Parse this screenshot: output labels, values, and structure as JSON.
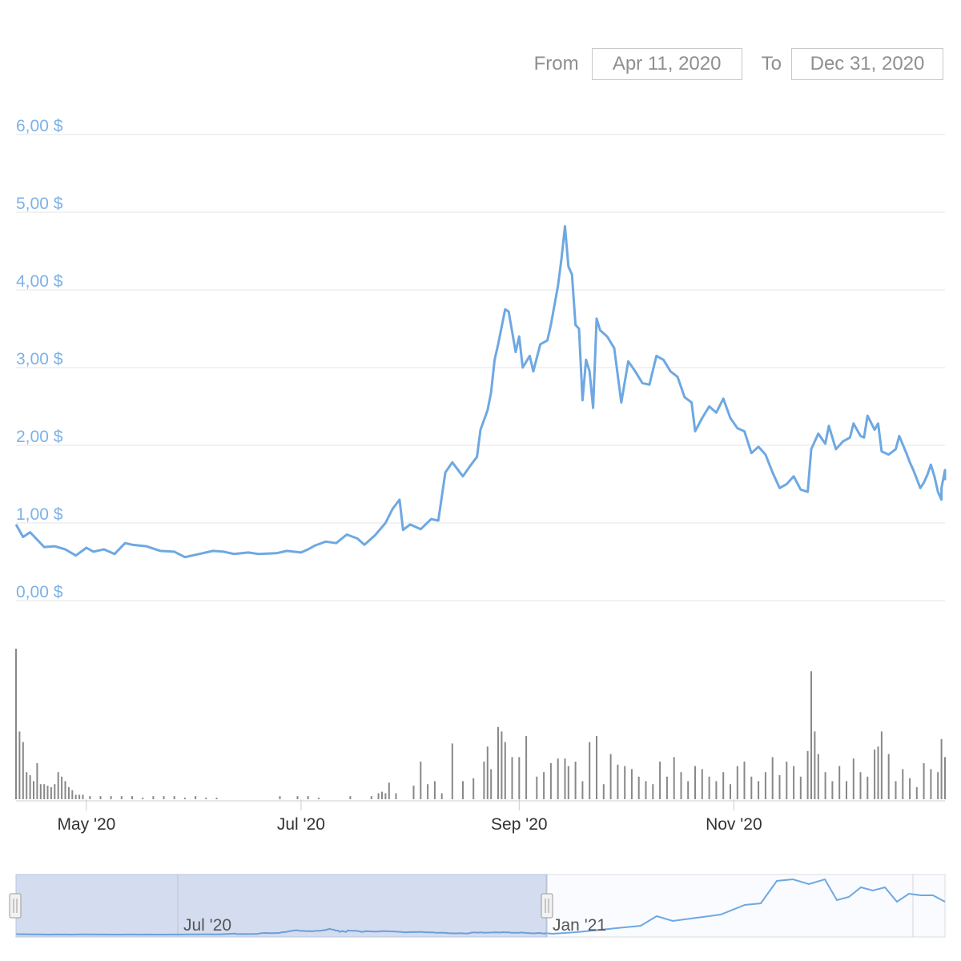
{
  "range_selector": {
    "from_label": "From",
    "from_value": "Apr 11, 2020",
    "to_label": "To",
    "to_value": "Dec 31, 2020"
  },
  "navigator": {
    "labels": [
      "Jul '20",
      "Jan '21"
    ]
  },
  "colors": {
    "line": "#6ea8e2",
    "axis_label": "#7db2e6",
    "volume": "#888888",
    "grid": "#e6e6e6"
  },
  "chart_data": {
    "type": "line",
    "title": "",
    "xlabel": "",
    "ylabel": "",
    "x_range": [
      "2020-04-11",
      "2020-12-31"
    ],
    "ylim": [
      0,
      6
    ],
    "y_tick_labels": [
      "0,00 $",
      "1,00 $",
      "2,00 $",
      "3,00 $",
      "4,00 $",
      "5,00 $",
      "6,00 $"
    ],
    "x_tick_labels": [
      "May '20",
      "Jul '20",
      "Sep '20",
      "Nov '20"
    ],
    "x_ticks": [
      "2020-05-01",
      "2020-07-01",
      "2020-09-01",
      "2020-11-01"
    ],
    "grid": true,
    "series": [
      {
        "values": [
          [
            "2020-04-11",
            0.98
          ],
          [
            "2020-04-13",
            0.82
          ],
          [
            "2020-04-15",
            0.88
          ],
          [
            "2020-04-19",
            0.69
          ],
          [
            "2020-04-22",
            0.7
          ],
          [
            "2020-04-25",
            0.66
          ],
          [
            "2020-04-28",
            0.58
          ],
          [
            "2020-05-01",
            0.68
          ],
          [
            "2020-05-03",
            0.63
          ],
          [
            "2020-05-06",
            0.66
          ],
          [
            "2020-05-09",
            0.6
          ],
          [
            "2020-05-12",
            0.74
          ],
          [
            "2020-05-14",
            0.72
          ],
          [
            "2020-05-18",
            0.7
          ],
          [
            "2020-05-22",
            0.64
          ],
          [
            "2020-05-26",
            0.63
          ],
          [
            "2020-05-29",
            0.56
          ],
          [
            "2020-06-02",
            0.6
          ],
          [
            "2020-06-06",
            0.64
          ],
          [
            "2020-06-09",
            0.63
          ],
          [
            "2020-06-12",
            0.6
          ],
          [
            "2020-06-16",
            0.62
          ],
          [
            "2020-06-19",
            0.6
          ],
          [
            "2020-06-24",
            0.61
          ],
          [
            "2020-06-27",
            0.64
          ],
          [
            "2020-07-01",
            0.62
          ],
          [
            "2020-07-03",
            0.66
          ],
          [
            "2020-07-05",
            0.71
          ],
          [
            "2020-07-08",
            0.76
          ],
          [
            "2020-07-11",
            0.74
          ],
          [
            "2020-07-14",
            0.85
          ],
          [
            "2020-07-17",
            0.8
          ],
          [
            "2020-07-19",
            0.72
          ],
          [
            "2020-07-22",
            0.84
          ],
          [
            "2020-07-25",
            1.0
          ],
          [
            "2020-07-27",
            1.18
          ],
          [
            "2020-07-29",
            1.3
          ],
          [
            "2020-07-30",
            0.91
          ],
          [
            "2020-08-01",
            0.98
          ],
          [
            "2020-08-04",
            0.92
          ],
          [
            "2020-08-07",
            1.05
          ],
          [
            "2020-08-09",
            1.03
          ],
          [
            "2020-08-11",
            1.65
          ],
          [
            "2020-08-13",
            1.78
          ],
          [
            "2020-08-16",
            1.6
          ],
          [
            "2020-08-18",
            1.73
          ],
          [
            "2020-08-20",
            1.85
          ],
          [
            "2020-08-21",
            2.2
          ],
          [
            "2020-08-23",
            2.45
          ],
          [
            "2020-08-24",
            2.68
          ],
          [
            "2020-08-25",
            3.1
          ],
          [
            "2020-08-26",
            3.3
          ],
          [
            "2020-08-28",
            3.75
          ],
          [
            "2020-08-29",
            3.72
          ],
          [
            "2020-08-31",
            3.2
          ],
          [
            "2020-09-01",
            3.4
          ],
          [
            "2020-09-02",
            3.0
          ],
          [
            "2020-09-04",
            3.15
          ],
          [
            "2020-09-05",
            2.95
          ],
          [
            "2020-09-07",
            3.3
          ],
          [
            "2020-09-09",
            3.35
          ],
          [
            "2020-09-10",
            3.55
          ],
          [
            "2020-09-12",
            4.05
          ],
          [
            "2020-09-13",
            4.4
          ],
          [
            "2020-09-14",
            4.82
          ],
          [
            "2020-09-15",
            4.3
          ],
          [
            "2020-09-16",
            4.2
          ],
          [
            "2020-09-17",
            3.55
          ],
          [
            "2020-09-18",
            3.5
          ],
          [
            "2020-09-19",
            2.58
          ],
          [
            "2020-09-20",
            3.1
          ],
          [
            "2020-09-21",
            2.95
          ],
          [
            "2020-09-22",
            2.48
          ],
          [
            "2020-09-23",
            3.63
          ],
          [
            "2020-09-24",
            3.48
          ],
          [
            "2020-09-26",
            3.4
          ],
          [
            "2020-09-28",
            3.25
          ],
          [
            "2020-09-30",
            2.55
          ],
          [
            "2020-10-02",
            3.08
          ],
          [
            "2020-10-04",
            2.95
          ],
          [
            "2020-10-06",
            2.8
          ],
          [
            "2020-10-08",
            2.78
          ],
          [
            "2020-10-10",
            3.15
          ],
          [
            "2020-10-12",
            3.1
          ],
          [
            "2020-10-14",
            2.95
          ],
          [
            "2020-10-16",
            2.88
          ],
          [
            "2020-10-18",
            2.62
          ],
          [
            "2020-10-20",
            2.55
          ],
          [
            "2020-10-21",
            2.18
          ],
          [
            "2020-10-23",
            2.35
          ],
          [
            "2020-10-25",
            2.5
          ],
          [
            "2020-10-27",
            2.42
          ],
          [
            "2020-10-29",
            2.6
          ],
          [
            "2020-10-31",
            2.35
          ],
          [
            "2020-11-02",
            2.22
          ],
          [
            "2020-11-04",
            2.18
          ],
          [
            "2020-11-06",
            1.9
          ],
          [
            "2020-11-08",
            1.98
          ],
          [
            "2020-11-10",
            1.88
          ],
          [
            "2020-11-12",
            1.65
          ],
          [
            "2020-11-14",
            1.45
          ],
          [
            "2020-11-16",
            1.5
          ],
          [
            "2020-11-18",
            1.6
          ],
          [
            "2020-11-20",
            1.43
          ],
          [
            "2020-11-22",
            1.4
          ],
          [
            "2020-11-23",
            1.95
          ],
          [
            "2020-11-25",
            2.15
          ],
          [
            "2020-11-27",
            2.02
          ],
          [
            "2020-11-28",
            2.25
          ],
          [
            "2020-11-30",
            1.95
          ],
          [
            "2020-12-02",
            2.05
          ],
          [
            "2020-12-04",
            2.1
          ],
          [
            "2020-12-05",
            2.28
          ],
          [
            "2020-12-07",
            2.12
          ],
          [
            "2020-12-08",
            2.1
          ],
          [
            "2020-12-09",
            2.38
          ],
          [
            "2020-12-11",
            2.2
          ],
          [
            "2020-12-12",
            2.28
          ],
          [
            "2020-12-13",
            1.92
          ],
          [
            "2020-12-15",
            1.88
          ],
          [
            "2020-12-17",
            1.95
          ],
          [
            "2020-12-18",
            2.12
          ],
          [
            "2020-12-20",
            1.9
          ],
          [
            "2020-12-21",
            1.78
          ],
          [
            "2020-12-22",
            1.68
          ],
          [
            "2020-12-24",
            1.45
          ],
          [
            "2020-12-25",
            1.52
          ],
          [
            "2020-12-26",
            1.62
          ],
          [
            "2020-12-27",
            1.75
          ],
          [
            "2020-12-28",
            1.6
          ],
          [
            "2020-12-29",
            1.4
          ],
          [
            "2020-12-30",
            1.3
          ],
          [
            "2020-12-30",
            1.45
          ],
          [
            "2020-12-31",
            1.68
          ],
          [
            "2020-12-31",
            1.55
          ]
        ]
      }
    ],
    "volume": [
      [
        "2020-04-11",
        100
      ],
      [
        "2020-04-12",
        45
      ],
      [
        "2020-04-13",
        38
      ],
      [
        "2020-04-14",
        18
      ],
      [
        "2020-04-15",
        16
      ],
      [
        "2020-04-16",
        12
      ],
      [
        "2020-04-17",
        24
      ],
      [
        "2020-04-18",
        10
      ],
      [
        "2020-04-19",
        10
      ],
      [
        "2020-04-20",
        9
      ],
      [
        "2020-04-21",
        8
      ],
      [
        "2020-04-22",
        10
      ],
      [
        "2020-04-23",
        18
      ],
      [
        "2020-04-24",
        15
      ],
      [
        "2020-04-25",
        12
      ],
      [
        "2020-04-26",
        8
      ],
      [
        "2020-04-27",
        6
      ],
      [
        "2020-04-28",
        3
      ],
      [
        "2020-04-29",
        3
      ],
      [
        "2020-04-30",
        3
      ],
      [
        "2020-05-02",
        2
      ],
      [
        "2020-05-05",
        2
      ],
      [
        "2020-05-08",
        2
      ],
      [
        "2020-05-11",
        2
      ],
      [
        "2020-05-14",
        2
      ],
      [
        "2020-05-17",
        1
      ],
      [
        "2020-05-20",
        2
      ],
      [
        "2020-05-23",
        2
      ],
      [
        "2020-05-26",
        2
      ],
      [
        "2020-05-29",
        1
      ],
      [
        "2020-06-01",
        2
      ],
      [
        "2020-06-04",
        1
      ],
      [
        "2020-06-07",
        1
      ],
      [
        "2020-06-25",
        2
      ],
      [
        "2020-06-30",
        2
      ],
      [
        "2020-07-03",
        2
      ],
      [
        "2020-07-06",
        1
      ],
      [
        "2020-07-15",
        2
      ],
      [
        "2020-07-21",
        2
      ],
      [
        "2020-07-23",
        4
      ],
      [
        "2020-07-24",
        5
      ],
      [
        "2020-07-25",
        4
      ],
      [
        "2020-07-26",
        11
      ],
      [
        "2020-07-28",
        4
      ],
      [
        "2020-08-02",
        9
      ],
      [
        "2020-08-04",
        25
      ],
      [
        "2020-08-06",
        10
      ],
      [
        "2020-08-08",
        12
      ],
      [
        "2020-08-10",
        4
      ],
      [
        "2020-08-13",
        37
      ],
      [
        "2020-08-16",
        12
      ],
      [
        "2020-08-19",
        14
      ],
      [
        "2020-08-22",
        25
      ],
      [
        "2020-08-23",
        35
      ],
      [
        "2020-08-24",
        20
      ],
      [
        "2020-08-26",
        48
      ],
      [
        "2020-08-27",
        45
      ],
      [
        "2020-08-28",
        38
      ],
      [
        "2020-08-30",
        28
      ],
      [
        "2020-09-01",
        28
      ],
      [
        "2020-09-03",
        42
      ],
      [
        "2020-09-06",
        15
      ],
      [
        "2020-09-08",
        18
      ],
      [
        "2020-09-10",
        24
      ],
      [
        "2020-09-12",
        27
      ],
      [
        "2020-09-14",
        27
      ],
      [
        "2020-09-15",
        22
      ],
      [
        "2020-09-17",
        25
      ],
      [
        "2020-09-19",
        12
      ],
      [
        "2020-09-21",
        38
      ],
      [
        "2020-09-23",
        42
      ],
      [
        "2020-09-25",
        10
      ],
      [
        "2020-09-27",
        30
      ],
      [
        "2020-09-29",
        23
      ],
      [
        "2020-10-01",
        22
      ],
      [
        "2020-10-03",
        20
      ],
      [
        "2020-10-05",
        15
      ],
      [
        "2020-10-07",
        12
      ],
      [
        "2020-10-09",
        10
      ],
      [
        "2020-10-11",
        25
      ],
      [
        "2020-10-13",
        15
      ],
      [
        "2020-10-15",
        28
      ],
      [
        "2020-10-17",
        18
      ],
      [
        "2020-10-19",
        12
      ],
      [
        "2020-10-21",
        22
      ],
      [
        "2020-10-23",
        20
      ],
      [
        "2020-10-25",
        15
      ],
      [
        "2020-10-27",
        12
      ],
      [
        "2020-10-29",
        18
      ],
      [
        "2020-10-31",
        10
      ],
      [
        "2020-11-02",
        22
      ],
      [
        "2020-11-04",
        25
      ],
      [
        "2020-11-06",
        15
      ],
      [
        "2020-11-08",
        12
      ],
      [
        "2020-11-10",
        18
      ],
      [
        "2020-11-12",
        28
      ],
      [
        "2020-11-14",
        16
      ],
      [
        "2020-11-16",
        25
      ],
      [
        "2020-11-18",
        22
      ],
      [
        "2020-11-20",
        15
      ],
      [
        "2020-11-22",
        32
      ],
      [
        "2020-11-23",
        85
      ],
      [
        "2020-11-24",
        45
      ],
      [
        "2020-11-25",
        30
      ],
      [
        "2020-11-27",
        18
      ],
      [
        "2020-11-29",
        12
      ],
      [
        "2020-12-01",
        22
      ],
      [
        "2020-12-03",
        12
      ],
      [
        "2020-12-05",
        27
      ],
      [
        "2020-12-07",
        18
      ],
      [
        "2020-12-09",
        15
      ],
      [
        "2020-12-11",
        33
      ],
      [
        "2020-12-12",
        35
      ],
      [
        "2020-12-13",
        45
      ],
      [
        "2020-12-15",
        30
      ],
      [
        "2020-12-17",
        12
      ],
      [
        "2020-12-19",
        20
      ],
      [
        "2020-12-21",
        14
      ],
      [
        "2020-12-23",
        8
      ],
      [
        "2020-12-25",
        24
      ],
      [
        "2020-12-27",
        20
      ],
      [
        "2020-12-29",
        18
      ],
      [
        "2020-12-30",
        40
      ],
      [
        "2020-12-31",
        28
      ]
    ]
  }
}
